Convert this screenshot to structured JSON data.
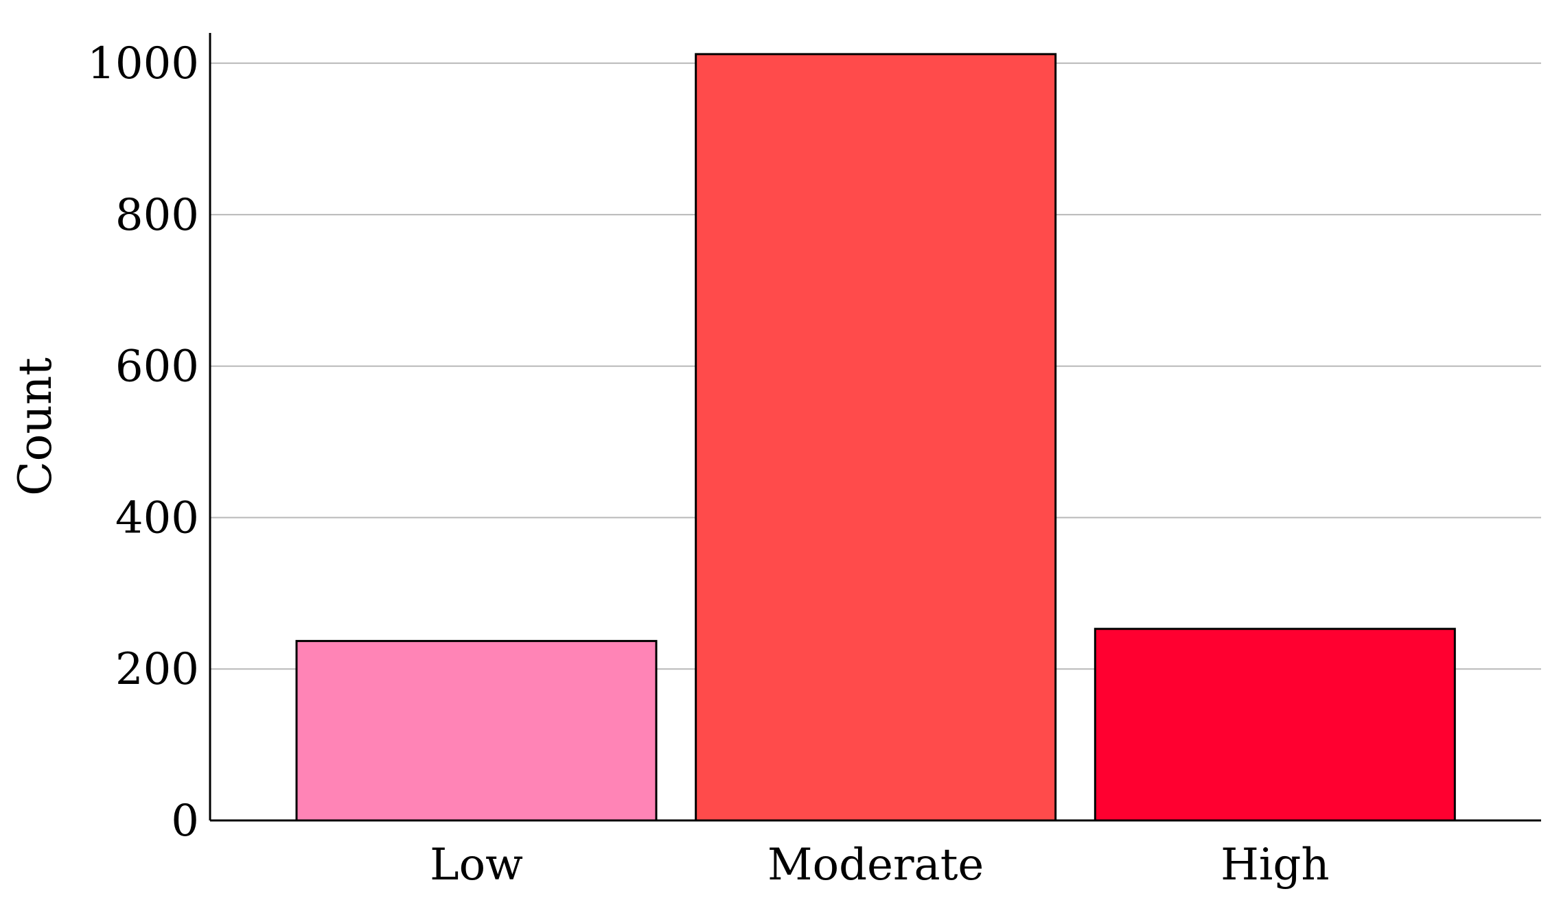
{
  "chart_data": {
    "type": "bar",
    "categories": [
      "Low",
      "Moderate",
      "High"
    ],
    "values": [
      237,
      1012,
      253
    ],
    "colors": [
      "#ff84b6",
      "#ff4b4b",
      "#ff0030"
    ],
    "title": "",
    "xlabel": "",
    "ylabel": "Count",
    "ylim": [
      0,
      1040
    ],
    "yticks": [
      0,
      200,
      400,
      600,
      800,
      1000
    ],
    "grid": true
  }
}
